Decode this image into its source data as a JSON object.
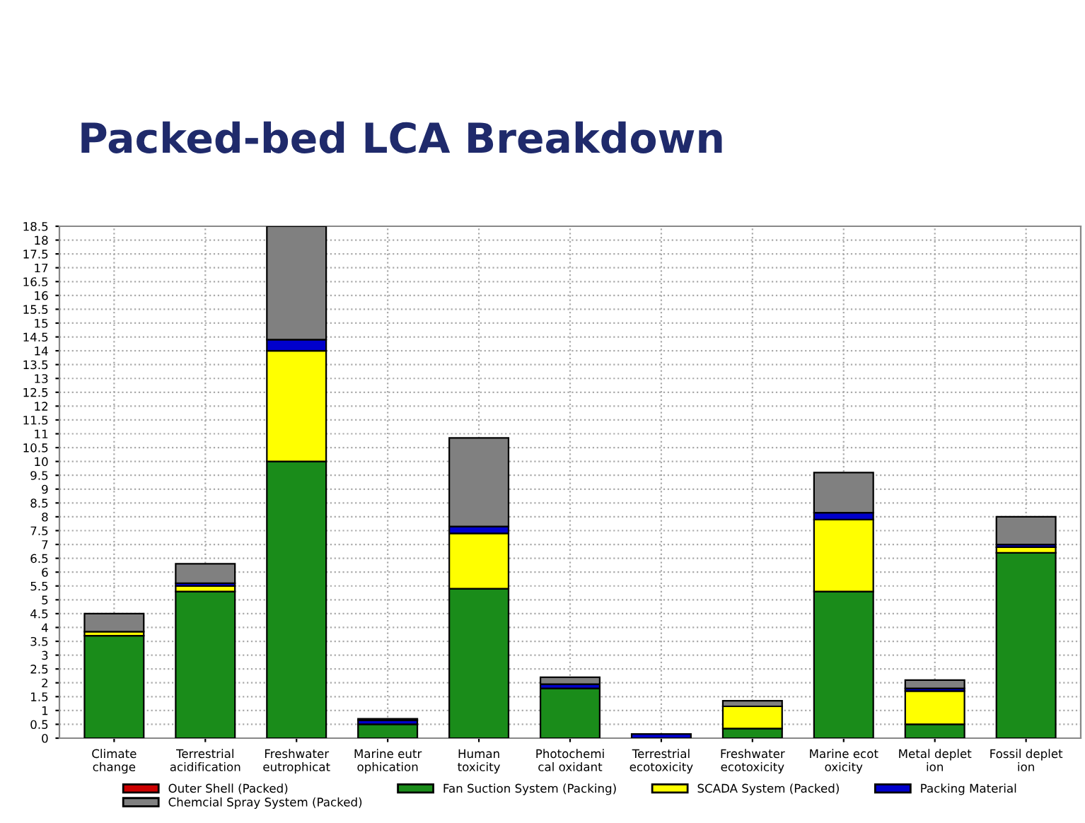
{
  "chart_data": {
    "type": "bar",
    "stacked": true,
    "title": "Packed-bed LCA Breakdown",
    "categories": [
      "Climate\nchange",
      "Terrestrial\nacidification",
      "Freshwater\neutrophicat",
      "Marine eutr\nophication",
      "Human\ntoxicity",
      "Photochemi\ncal oxidant",
      "Terrestrial\necotoxicity",
      "Freshwater\necotoxicity",
      "Marine ecot\noxicity",
      "Metal deplet\nion",
      "Fossil deplet\nion"
    ],
    "series": [
      {
        "name": "Outer Shell (Packed)",
        "color": "#cc0000",
        "values": [
          0,
          0,
          0,
          0,
          0,
          0,
          0,
          0,
          0,
          0,
          0
        ]
      },
      {
        "name": "Fan Suction System (Packing)",
        "color": "#1a8c1a",
        "values": [
          3.7,
          5.3,
          10,
          0.5,
          5.4,
          1.8,
          null,
          0.35,
          5.3,
          0.5,
          6.7
        ]
      },
      {
        "name": "SCADA System (Packed)",
        "color": "#ffff00",
        "values": [
          0.15,
          0.2,
          4.0,
          0,
          2.0,
          0,
          0,
          0.8,
          2.6,
          1.2,
          0.2
        ]
      },
      {
        "name": "Packing Material",
        "color": "#0000cc",
        "values": [
          null,
          0.1,
          0.4,
          0.15,
          0.25,
          0.15,
          0.15,
          null,
          0.25,
          0.1,
          0.1
        ]
      },
      {
        "name": "Chemcial Spray System (Packed)",
        "color": "#808080",
        "values": [
          0.65,
          0.7,
          4.1,
          0.05,
          3.2,
          0.25,
          0,
          0.2,
          1.45,
          0.3,
          1.0
        ]
      }
    ],
    "ylim": [
      0,
      18.5
    ],
    "yticks": [
      0,
      0.5,
      1,
      1.5,
      2,
      2.5,
      3,
      3.5,
      4,
      4.5,
      5,
      5.5,
      6,
      6.5,
      7,
      7.5,
      8,
      8.5,
      9,
      9.5,
      10,
      10.5,
      11,
      11.5,
      12,
      12.5,
      13,
      13.5,
      14,
      14.5,
      15,
      15.5,
      16,
      16.5,
      17,
      17.5,
      18,
      18.5
    ],
    "grid": true,
    "legend": "bottom"
  }
}
